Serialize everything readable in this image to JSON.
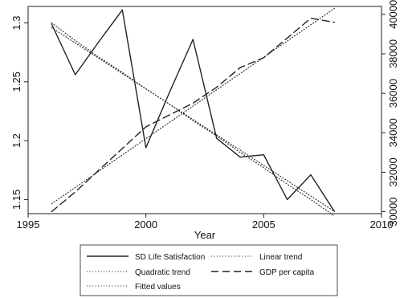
{
  "chart_data": {
    "type": "line",
    "xlabel": "Year",
    "ylabel": "",
    "ylabel_right": "",
    "xlim": [
      1995,
      2010
    ],
    "ylim": [
      1.138,
      1.314
    ],
    "ylim_right": [
      29900,
      40400
    ],
    "x_ticks": [
      "1995",
      "2000",
      "2005",
      "2010"
    ],
    "y_ticks": [
      "1.15",
      "1.2",
      "1.25",
      "1.3"
    ],
    "y_right_ticks": [
      "30000",
      "32000",
      "34000",
      "36000",
      "38000",
      "40000"
    ],
    "grid": false,
    "legend_position": "bottom",
    "series": [
      {
        "name": "SD Life Satisfaction",
        "axis": "left",
        "style": "solid",
        "x": [
          1996,
          1997,
          1998,
          1999,
          2000,
          2001,
          2002,
          2003,
          2004,
          2005,
          2006,
          2007,
          2008
        ],
        "y": [
          1.299,
          1.256,
          1.284,
          1.311,
          1.194,
          1.241,
          1.286,
          1.202,
          1.186,
          1.188,
          1.15,
          1.171,
          1.14
        ]
      },
      {
        "name": "Linear trend",
        "axis": "left",
        "style": "dotted",
        "x": [
          1996,
          2008
        ],
        "y": [
          1.296,
          1.14
        ]
      },
      {
        "name": "Quadratic trend",
        "axis": "left",
        "style": "dotted",
        "x": [
          1996,
          1997,
          1998,
          1999,
          2000,
          2001,
          2002,
          2003,
          2004,
          2005,
          2006,
          2007,
          2008
        ],
        "y": [
          1.3,
          1.285,
          1.271,
          1.258,
          1.244,
          1.231,
          1.217,
          1.204,
          1.19,
          1.177,
          1.163,
          1.15,
          1.136
        ]
      },
      {
        "name": "Fitted values",
        "axis": "right",
        "style": "dotted",
        "x": [
          1996,
          2008
        ],
        "y": [
          30400,
          40300
        ]
      },
      {
        "name": "GDP per capita",
        "axis": "right",
        "style": "dashed",
        "x": [
          1996,
          1997,
          1998,
          1999,
          2000,
          2001,
          2002,
          2003,
          2004,
          2005,
          2006,
          2007,
          2008
        ],
        "y": [
          30000,
          31000,
          32100,
          33200,
          34300,
          34900,
          35500,
          36300,
          37300,
          37800,
          38800,
          39800,
          39600
        ]
      }
    ]
  }
}
